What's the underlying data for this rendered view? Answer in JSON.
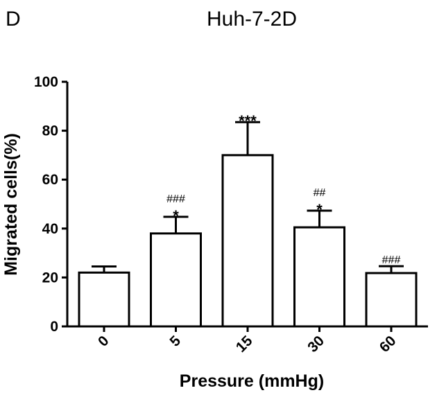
{
  "panel_letter": "D",
  "chart_data": {
    "type": "bar",
    "title": "Huh-7-2D",
    "xlabel": "Pressure (mmHg)",
    "ylabel": "Migrated cells(%)",
    "categories": [
      "0",
      "5",
      "15",
      "30",
      "60"
    ],
    "values": [
      22,
      38,
      70,
      40.5,
      21.8
    ],
    "errors": [
      2.5,
      6.8,
      13.5,
      6.8,
      2.8
    ],
    "ylim": [
      0,
      100
    ],
    "yticks": [
      0,
      20,
      40,
      60,
      80,
      100
    ],
    "ytick_labels": [
      "0",
      "20",
      "40",
      "60",
      "80",
      "100"
    ],
    "significance_stars": [
      "",
      "*",
      "***",
      "*",
      ""
    ],
    "significance_hashes": [
      "",
      "###",
      "",
      "##",
      "###"
    ],
    "grid": false,
    "bar_fill": "#ffffff",
    "bar_stroke": "#000000"
  }
}
